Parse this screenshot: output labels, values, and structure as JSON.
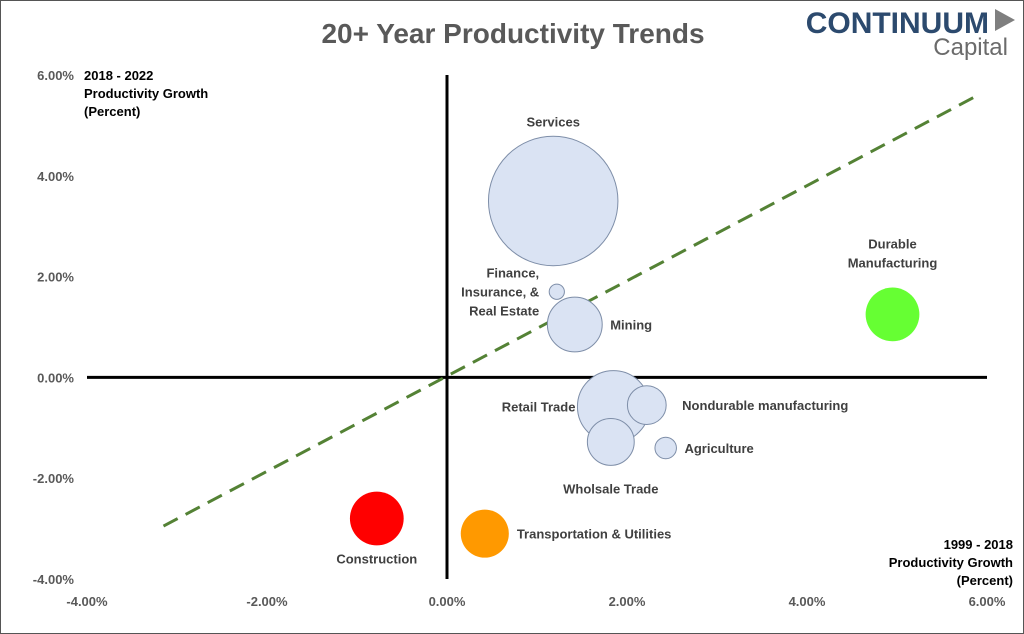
{
  "logo": {
    "main": "CONTINUUM",
    "sub": "Capital",
    "color": "#2c4a6e",
    "arrow_color": "#7f7f7f"
  },
  "chart_data": {
    "type": "bubble",
    "title": "20+ Year Productivity Trends",
    "xlabel": [
      "1999 - 2018",
      "Productivity Growth",
      "(Percent)"
    ],
    "ylabel": [
      "2018 - 2022",
      "Productivity Growth",
      "(Percent)"
    ],
    "xlim": [
      -4,
      6
    ],
    "ylim": [
      -4,
      6
    ],
    "x_ticks": [
      {
        "value": -4,
        "label": "-4.00%"
      },
      {
        "value": -2,
        "label": "-2.00%"
      },
      {
        "value": 0,
        "label": "0.00%"
      },
      {
        "value": 2,
        "label": "2.00%"
      },
      {
        "value": 4,
        "label": "4.00%"
      },
      {
        "value": 6,
        "label": "6.00%"
      }
    ],
    "y_ticks": [
      {
        "value": -4,
        "label": "-4.00%"
      },
      {
        "value": -2,
        "label": "-2.00%"
      },
      {
        "value": 0,
        "label": "0.00%"
      },
      {
        "value": 2,
        "label": "2.00%"
      },
      {
        "value": 4,
        "label": "4.00%"
      },
      {
        "value": 6,
        "label": "6.00%"
      }
    ],
    "grid": false,
    "trendline": {
      "x1": -3.15,
      "y1": -2.95,
      "x2": 5.9,
      "y2": 5.6,
      "color": "#548235",
      "style": "dashed"
    },
    "points": [
      {
        "name": "Services",
        "label_lines": [
          "Services"
        ],
        "x": 1.18,
        "y": 3.5,
        "size": 14.5,
        "color": "#dae3f3",
        "label_color": "#404040",
        "label_pos": "top"
      },
      {
        "name": "Finance, Insurance, & Real Estate",
        "label_lines": [
          "Finance,",
          "Insurance, &",
          "Real Estate"
        ],
        "x": 1.22,
        "y": 1.7,
        "size": 0.2,
        "color": "#dae3f3",
        "label_color": "#404040",
        "label_pos": "left"
      },
      {
        "name": "Mining",
        "label_lines": [
          "Mining"
        ],
        "x": 1.42,
        "y": 1.05,
        "size": 2.6,
        "color": "#dae3f3",
        "label_color": "#404040",
        "label_pos": "right"
      },
      {
        "name": "Wholsale Trade",
        "label_lines": [
          "Wholsale Trade"
        ],
        "x": 1.82,
        "y": -1.28,
        "size": 1.9,
        "color": "#dae3f3",
        "label_color": "#404040",
        "label_pos": "bottom"
      },
      {
        "name": "Nondurable manufacturing",
        "label_lines": [
          "Nondurable manufacturing"
        ],
        "x": 2.22,
        "y": -0.55,
        "size": 1.3,
        "color": "#dae3f3",
        "label_color": "#404040",
        "label_pos": "right"
      },
      {
        "name": "Retail Trade",
        "label_lines": [
          "Retail Trade"
        ],
        "x": 1.85,
        "y": -0.58,
        "size": 4.5,
        "color": "#dae3f3",
        "label_color": "#404040",
        "label_pos": "left"
      },
      {
        "name": "Agriculture",
        "label_lines": [
          "Agriculture"
        ],
        "x": 2.43,
        "y": -1.4,
        "size": 0.4,
        "color": "#dae3f3",
        "label_color": "#404040",
        "label_pos": "right"
      },
      {
        "name": "Durable Manufacturing",
        "label_lines": [
          "Durable",
          "Manufacturing"
        ],
        "x": 4.95,
        "y": 1.25,
        "size": 2.5,
        "color": "#66ff33",
        "label_color": "#404040",
        "label_pos": "top"
      },
      {
        "name": "Construction",
        "label_lines": [
          "Construction"
        ],
        "x": -0.78,
        "y": -2.8,
        "size": 2.5,
        "color": "#ff0000",
        "label_color": "#ff0000",
        "label_pos": "bottom"
      },
      {
        "name": "Transportation & Utilities",
        "label_lines": [
          "Transportation & Utilities"
        ],
        "x": 0.42,
        "y": -3.1,
        "size": 2.0,
        "color": "#ff9900",
        "label_color": "#ff9900",
        "label_pos": "right"
      }
    ]
  }
}
